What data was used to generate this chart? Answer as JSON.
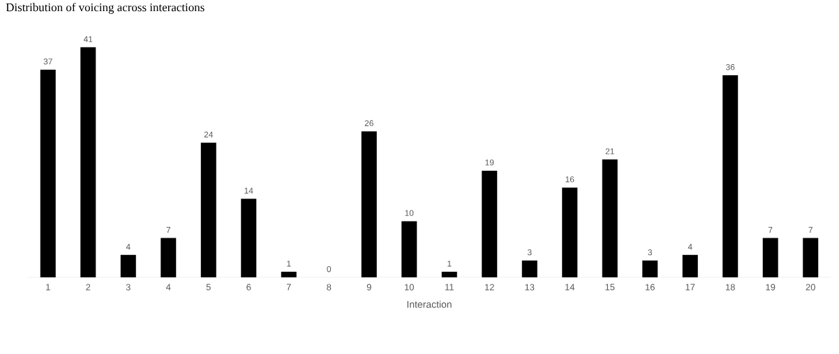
{
  "chart_data": {
    "type": "bar",
    "title": "Distribution of voicing across interactions",
    "xlabel": "Interaction",
    "categories": [
      "1",
      "2",
      "3",
      "4",
      "5",
      "6",
      "7",
      "8",
      "9",
      "10",
      "11",
      "12",
      "13",
      "14",
      "15",
      "16",
      "17",
      "18",
      "19",
      "20"
    ],
    "values": [
      37,
      41,
      4,
      7,
      24,
      14,
      1,
      0,
      26,
      10,
      1,
      19,
      3,
      16,
      21,
      3,
      4,
      36,
      7,
      7
    ],
    "color": "#000000",
    "data_labels": true
  }
}
